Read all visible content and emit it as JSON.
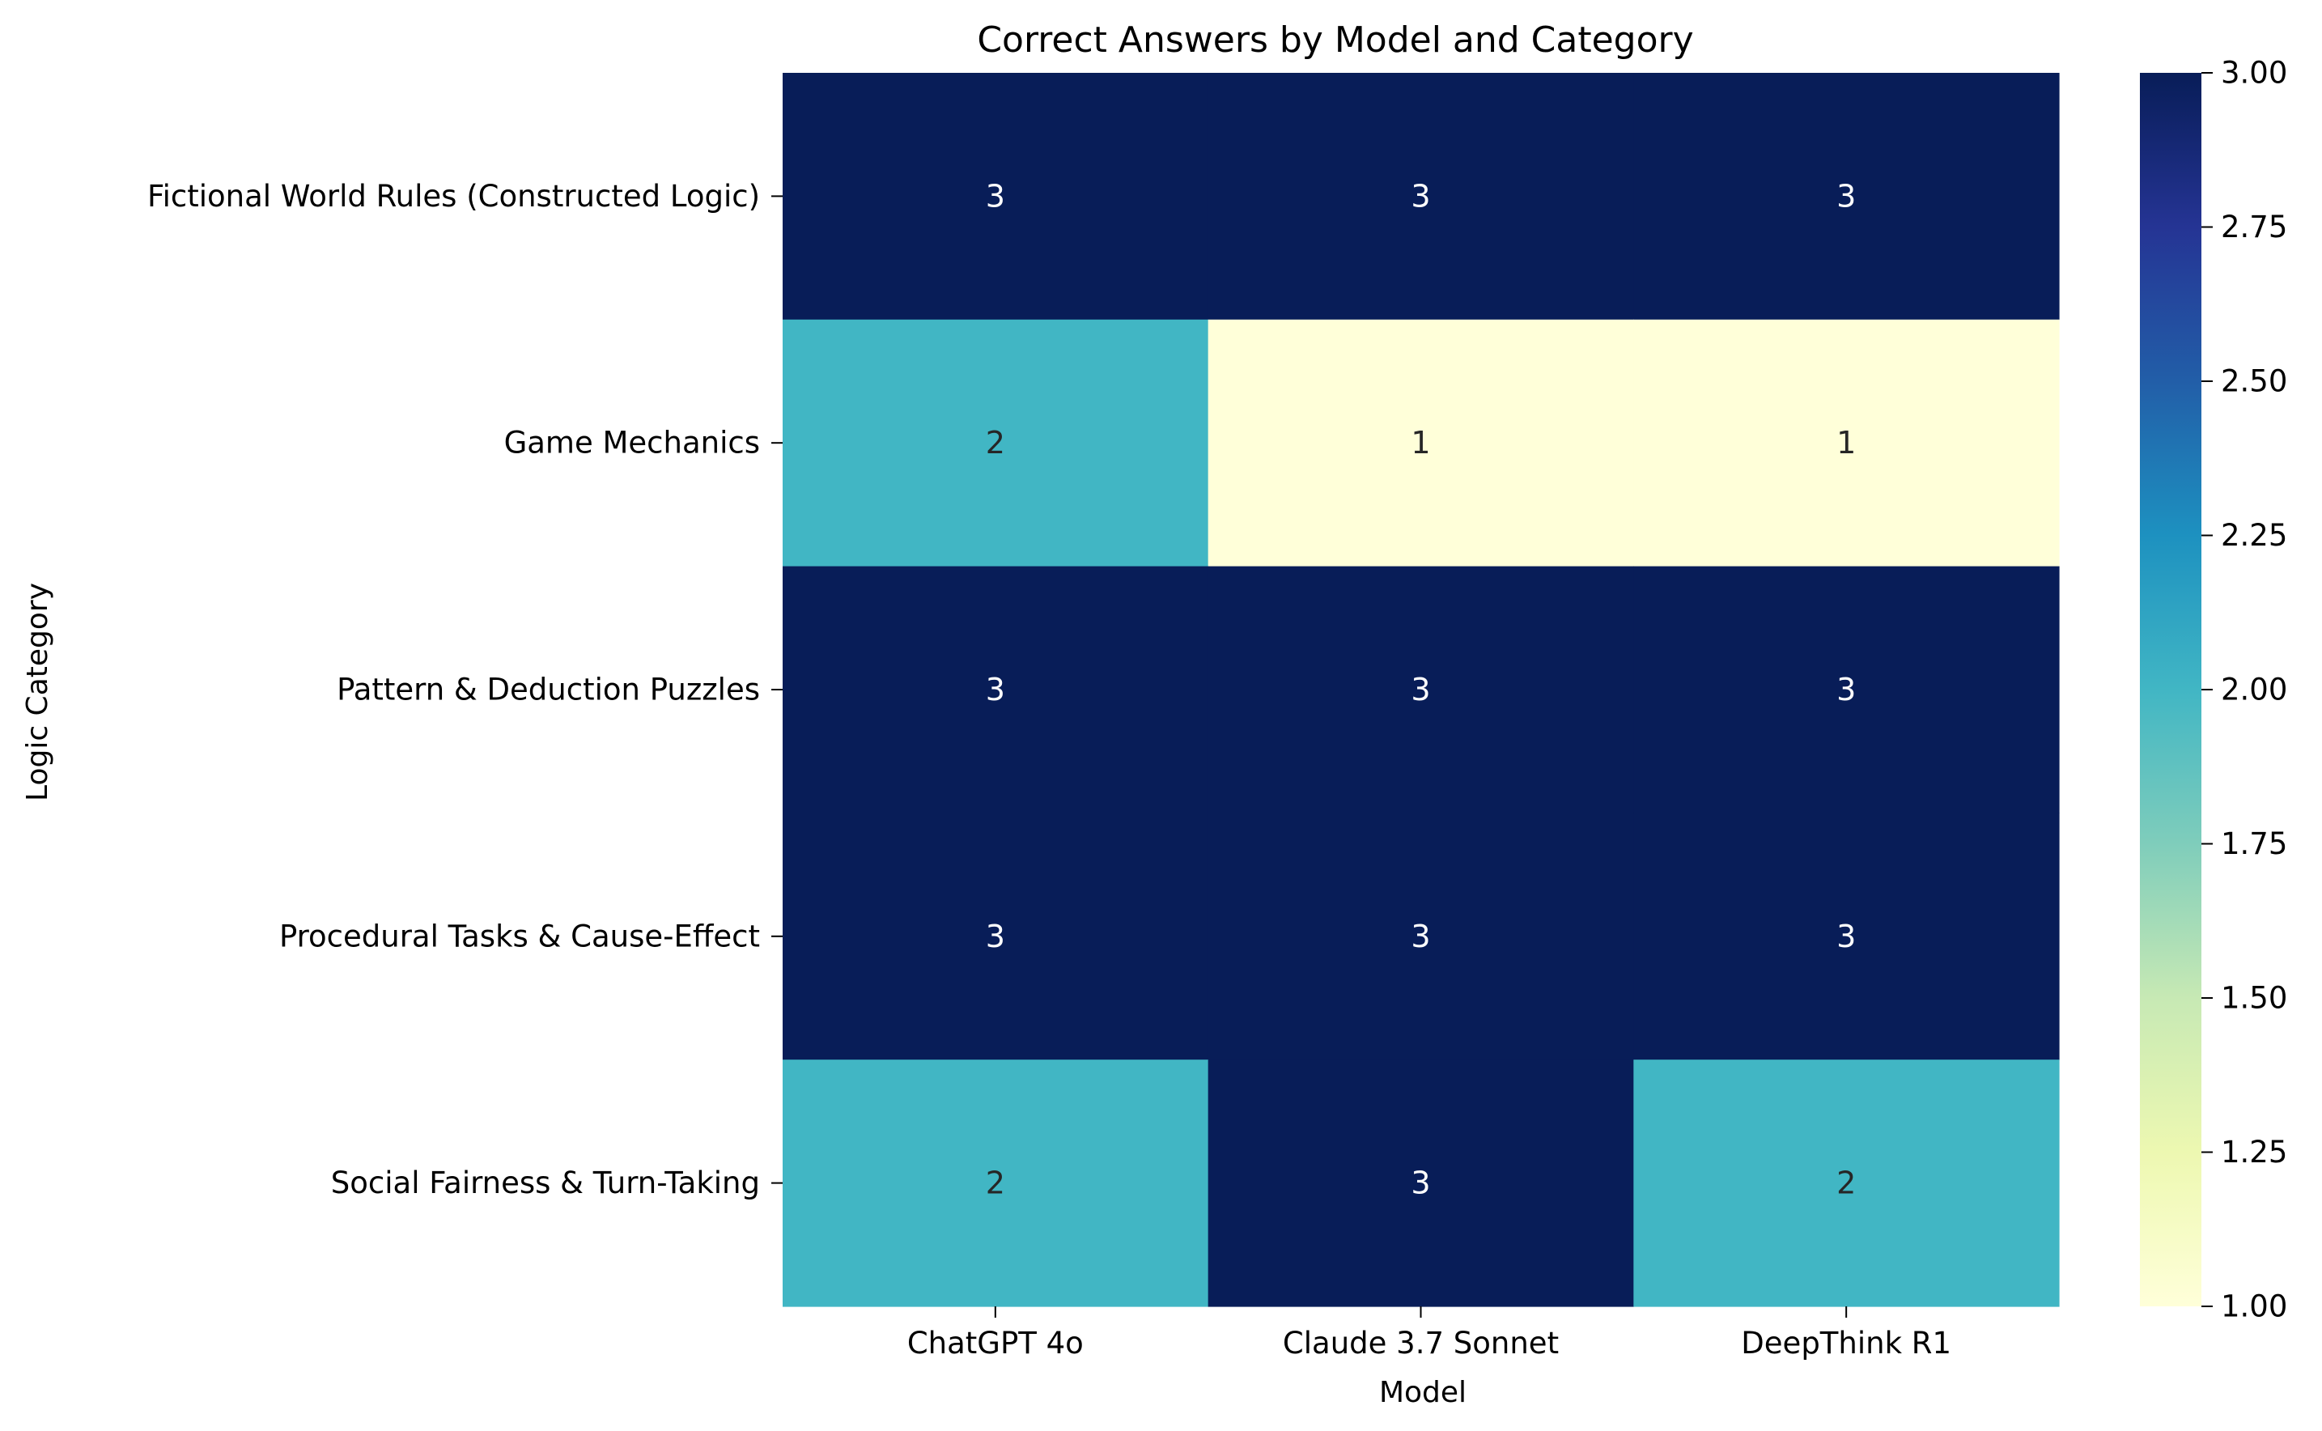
{
  "chart_data": {
    "type": "heatmap",
    "title": "Correct Answers by Model and Category",
    "xlabel": "Model",
    "ylabel": "Logic Category",
    "x_categories": [
      "ChatGPT 4o",
      "Claude 3.7 Sonnet",
      "DeepThink R1"
    ],
    "y_categories": [
      "Fictional World Rules (Constructed Logic)",
      "Game Mechanics",
      "Pattern & Deduction Puzzles",
      "Procedural Tasks & Cause-Effect",
      "Social Fairness & Turn-Taking"
    ],
    "values": [
      [
        3,
        3,
        3
      ],
      [
        2,
        1,
        1
      ],
      [
        3,
        3,
        3
      ],
      [
        3,
        3,
        3
      ],
      [
        2,
        3,
        2
      ]
    ],
    "cell_labels_shown": true,
    "colormap": "YlGnBu",
    "colorbar": {
      "range": [
        1.0,
        3.0
      ],
      "ticks": [
        "1.00",
        "1.25",
        "1.50",
        "1.75",
        "2.00",
        "2.25",
        "2.50",
        "2.75",
        "3.00"
      ]
    },
    "colors": {
      "low": "#ffffd9",
      "mid": "#41b6c4",
      "high": "#081d58",
      "text_on_dark": "#ffffff",
      "text_on_light": "#262626"
    }
  }
}
